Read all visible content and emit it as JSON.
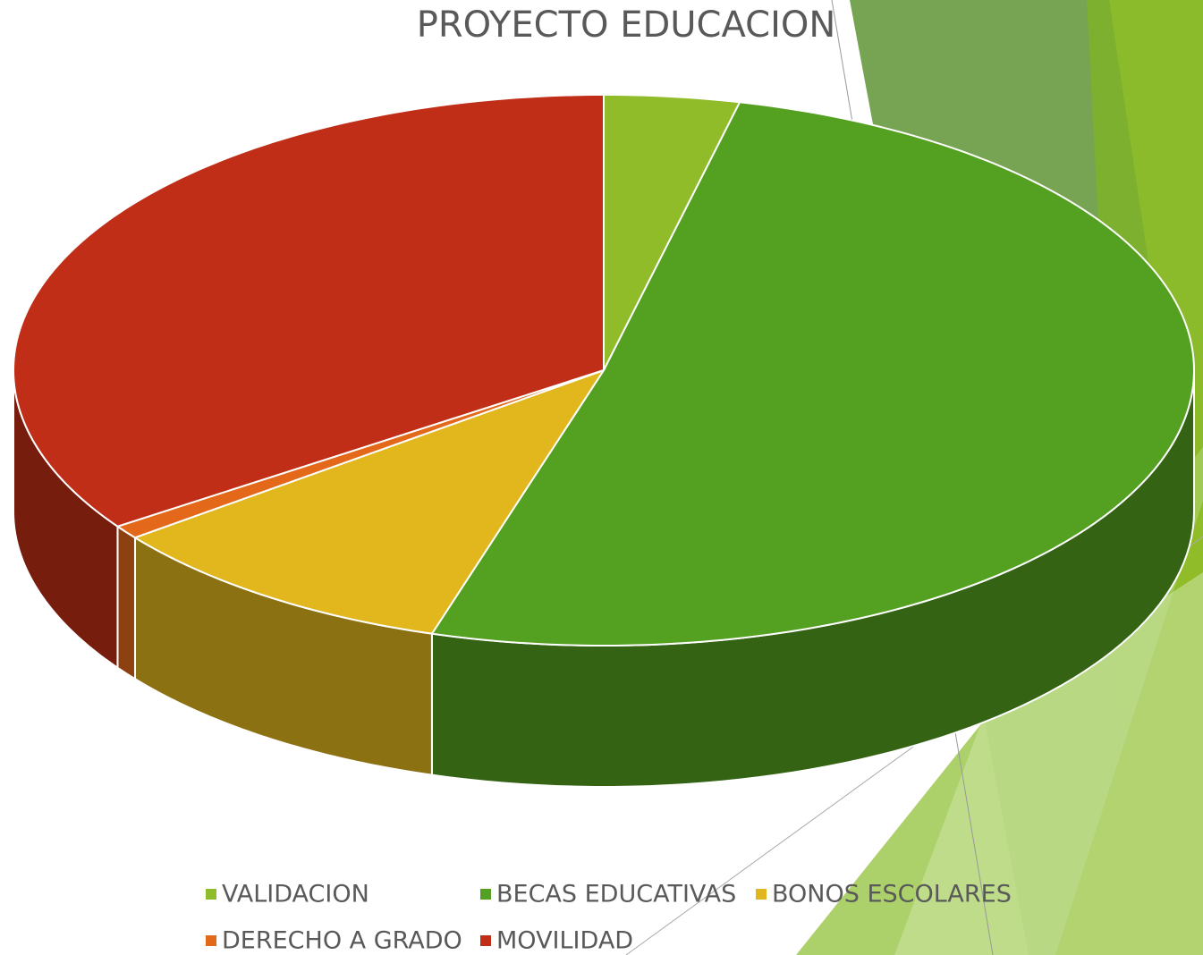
{
  "chart_data": {
    "type": "pie3d",
    "title": "PROYECTO EDUCACION",
    "categories": [
      "VALIDACION",
      "BECAS EDUCATIVAS",
      "BONOS ESCOLARES",
      "DERECHO A GRADO",
      "MOVILIDAD"
    ],
    "values": [
      3.7,
      51,
      9.9,
      0.8,
      34.6
    ],
    "colors": [
      "#8fbc28",
      "#54a021",
      "#e1b71d",
      "#e4681a",
      "#c02e17"
    ],
    "legend": "bottom"
  }
}
